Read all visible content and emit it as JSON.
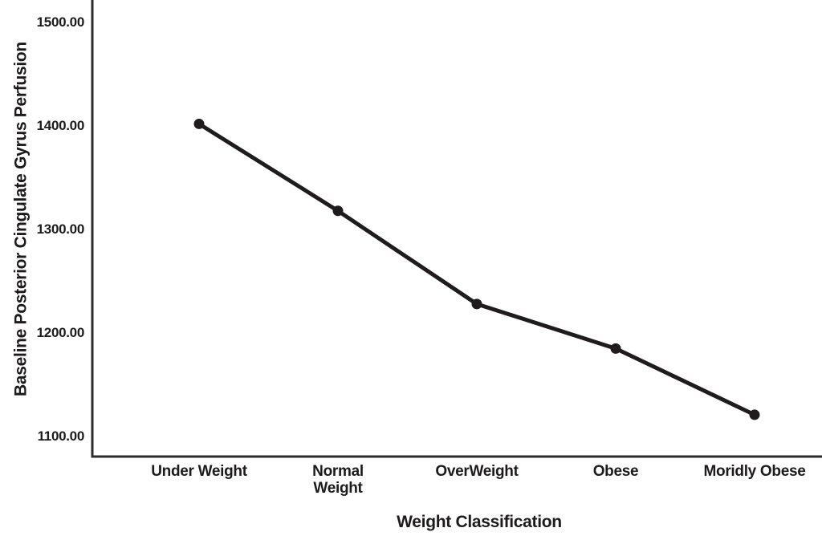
{
  "chart_data": {
    "type": "line",
    "title": "",
    "xlabel": "Weight Classification",
    "ylabel": "Baseline Posterior Cingulate Gyrus Perfusion",
    "categories": [
      "Under Weight",
      "Normal Weight",
      "OverWeight",
      "Obese",
      "Moridly Obese"
    ],
    "categories_display": [
      [
        "Under Weight"
      ],
      [
        "Normal",
        "Weight"
      ],
      [
        "OverWeight"
      ],
      [
        "Obese"
      ],
      [
        "Moridly Obese"
      ]
    ],
    "series": [
      {
        "name": "Baseline Posterior Cingulate Gyrus Perfusion",
        "values": [
          1402,
          1318,
          1228,
          1185,
          1121
        ]
      }
    ],
    "yticks": [
      1500,
      1400,
      1300,
      1200,
      1100
    ],
    "ytick_labels": [
      "1500.00",
      "1400.00",
      "1300.00",
      "1200.00",
      "1100.00"
    ],
    "ylim": [
      1080,
      1522
    ],
    "grid": false,
    "legend": "none",
    "marker": "circle",
    "line_color": "#201c1d",
    "axis_color": "#2b2b2b",
    "text_color": "#1c1a1b"
  }
}
